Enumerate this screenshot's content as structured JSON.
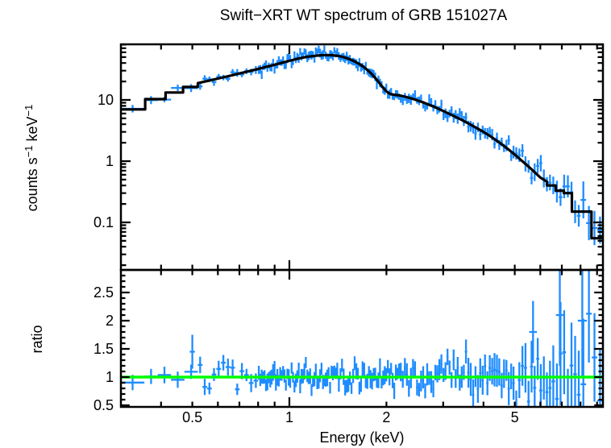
{
  "figure": {
    "background": "#ffffff",
    "text_color": "#000000"
  },
  "chart_data": {
    "type": "errorbar-spectrum-with-ratio",
    "title": "Swift−XRT WT spectrum of GRB 151027A",
    "xlabel": "Energy (keV)",
    "x_scale": "log",
    "x_range_kev": [
      0.3,
      9.38
    ],
    "x_tick_labels": [
      {
        "value": 0.5,
        "label": "0.5"
      },
      {
        "value": 1,
        "label": "1"
      },
      {
        "value": 2,
        "label": "2"
      },
      {
        "value": 5,
        "label": "5"
      }
    ],
    "colors": {
      "data": "#1e8cff",
      "model": "#000000",
      "reference": "#00ff00",
      "axes": "#000000"
    },
    "noise_seed": 20151027,
    "panels": [
      {
        "name": "spectrum",
        "ylabel": "counts s⁻¹ keV⁻¹",
        "ylabel_parts": [
          {
            "t": "counts s"
          },
          {
            "t": "−1",
            "sup": true
          },
          {
            "t": " keV"
          },
          {
            "t": "−1",
            "sup": true
          }
        ],
        "y_scale": "log",
        "y_range": [
          0.017,
          81
        ],
        "y_tick_labels": [
          {
            "value": 10,
            "label": "10"
          },
          {
            "value": 1,
            "label": "1"
          },
          {
            "value": 0.1,
            "label": "0.1"
          }
        ],
        "model_curve_kev_counts": [
          [
            0.3,
            7.0
          ],
          [
            0.357,
            7.0
          ],
          [
            0.357,
            10.3
          ],
          [
            0.413,
            10.3
          ],
          [
            0.413,
            13.2
          ],
          [
            0.468,
            13.2
          ],
          [
            0.468,
            16.3
          ],
          [
            0.52,
            16.3
          ],
          [
            0.52,
            18.8
          ],
          [
            0.56,
            20.5
          ],
          [
            0.6,
            22.3
          ],
          [
            0.65,
            24.6
          ],
          [
            0.7,
            27.0
          ],
          [
            0.75,
            29.5
          ],
          [
            0.8,
            32.0
          ],
          [
            0.85,
            34.8
          ],
          [
            0.9,
            37.5
          ],
          [
            0.95,
            40.5
          ],
          [
            1.0,
            43.5
          ],
          [
            1.05,
            46.5
          ],
          [
            1.1,
            49.0
          ],
          [
            1.15,
            51.0
          ],
          [
            1.2,
            52.5
          ],
          [
            1.25,
            53.5
          ],
          [
            1.3,
            54.0
          ],
          [
            1.35,
            53.8
          ],
          [
            1.4,
            52.8
          ],
          [
            1.45,
            51.0
          ],
          [
            1.5,
            48.5
          ],
          [
            1.55,
            45.5
          ],
          [
            1.6,
            42.0
          ],
          [
            1.65,
            38.5
          ],
          [
            1.7,
            34.5
          ],
          [
            1.75,
            30.5
          ],
          [
            1.8,
            26.5
          ],
          [
            1.85,
            22.5
          ],
          [
            1.9,
            19.0
          ],
          [
            1.95,
            16.0
          ],
          [
            2.0,
            13.8
          ],
          [
            2.05,
            12.6
          ],
          [
            2.1,
            12.2
          ],
          [
            2.2,
            11.8
          ],
          [
            2.3,
            11.2
          ],
          [
            2.4,
            10.5
          ],
          [
            2.5,
            9.8
          ],
          [
            2.6,
            9.1
          ],
          [
            2.8,
            7.8
          ],
          [
            3.0,
            6.6
          ],
          [
            3.2,
            5.6
          ],
          [
            3.4,
            4.8
          ],
          [
            3.6,
            4.1
          ],
          [
            3.8,
            3.5
          ],
          [
            4.0,
            3.0
          ],
          [
            4.2,
            2.55
          ],
          [
            4.4,
            2.15
          ],
          [
            4.6,
            1.82
          ],
          [
            4.8,
            1.53
          ],
          [
            5.0,
            1.28
          ],
          [
            5.2,
            1.07
          ],
          [
            5.4,
            0.9
          ],
          [
            5.6,
            0.76
          ],
          [
            5.8,
            0.64
          ],
          [
            6.0,
            0.54
          ],
          [
            6.3,
            0.46
          ],
          [
            6.3,
            0.4
          ],
          [
            6.7,
            0.4
          ],
          [
            6.7,
            0.33
          ],
          [
            7.1,
            0.33
          ],
          [
            7.1,
            0.3
          ],
          [
            7.52,
            0.3
          ],
          [
            7.52,
            0.15
          ],
          [
            8.65,
            0.15
          ],
          [
            8.65,
            0.055
          ],
          [
            9.38,
            0.055
          ]
        ],
        "data_segments": [
          [
            0.3,
            0.355,
            1,
            0.06,
            0.14
          ],
          [
            0.355,
            0.52,
            4,
            0.07,
            0.13
          ],
          [
            0.52,
            0.8,
            13,
            0.08,
            0.13
          ],
          [
            0.8,
            1.4,
            55,
            0.1,
            0.15
          ],
          [
            1.4,
            2.2,
            40,
            0.1,
            0.15
          ],
          [
            2.2,
            3.5,
            32,
            0.12,
            0.17
          ],
          [
            3.5,
            5.0,
            21,
            0.15,
            0.22
          ],
          [
            5.0,
            6.5,
            12,
            0.22,
            0.32
          ],
          [
            6.5,
            8.0,
            8,
            0.32,
            0.5
          ],
          [
            8.0,
            9.38,
            4,
            0.45,
            0.85
          ]
        ]
      },
      {
        "name": "ratio",
        "ylabel": "ratio",
        "y_scale": "linear",
        "y_range": [
          0.47,
          2.9
        ],
        "y_tick_labels": [
          {
            "value": 2.5,
            "label": "2.5"
          },
          {
            "value": 2,
            "label": "2"
          },
          {
            "value": 1.5,
            "label": "1.5"
          },
          {
            "value": 1,
            "label": "1"
          },
          {
            "value": 0.5,
            "label": "0.5"
          }
        ],
        "reference_line": {
          "value": 1.0,
          "color": "#00ff00"
        },
        "data_segments": [
          [
            0.3,
            0.355,
            1,
            0.07,
            0.13
          ],
          [
            0.355,
            0.52,
            4,
            0.08,
            0.13
          ],
          [
            0.52,
            0.8,
            13,
            0.1,
            0.13
          ],
          [
            0.8,
            1.4,
            55,
            0.1,
            0.12
          ],
          [
            1.4,
            2.2,
            40,
            0.11,
            0.13
          ],
          [
            2.2,
            3.5,
            32,
            0.13,
            0.16
          ],
          [
            3.5,
            5.0,
            21,
            0.18,
            0.24
          ],
          [
            5.0,
            6.5,
            12,
            0.26,
            0.4
          ],
          [
            6.5,
            8.0,
            8,
            0.4,
            0.75
          ],
          [
            8.0,
            9.38,
            4,
            0.5,
            0.95
          ]
        ],
        "feature_points": [
          [
            0.5,
            1.45,
            0.3,
            0.008
          ],
          [
            5.7,
            1.8,
            0.55,
            0.012
          ],
          [
            6.9,
            2.1,
            0.9,
            0.012
          ],
          [
            8.1,
            2.0,
            1.0,
            0.014
          ]
        ]
      }
    ]
  }
}
